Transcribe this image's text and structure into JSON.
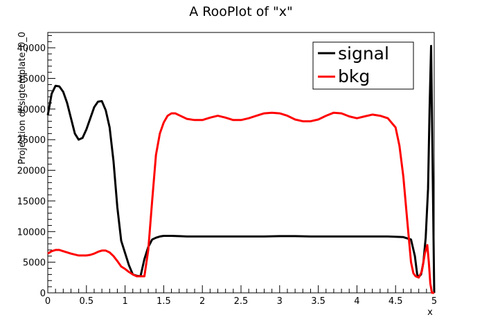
{
  "chart_data": {
    "type": "line",
    "title": "A RooPlot of \"x\"",
    "xlabel": "x",
    "ylabel": "Projection of sigtemplate_0_0",
    "xlim": [
      0,
      5
    ],
    "ylim": [
      0,
      42500
    ],
    "x_ticks": [
      0,
      0.5,
      1,
      1.5,
      2,
      2.5,
      3,
      3.5,
      4,
      4.5,
      5
    ],
    "x_tick_labels": [
      "0",
      "0.5",
      "1",
      "1.5",
      "2",
      "2.5",
      "3",
      "3.5",
      "4",
      "4.5",
      "5"
    ],
    "y_ticks": [
      0,
      5000,
      10000,
      15000,
      20000,
      25000,
      30000,
      35000,
      40000
    ],
    "y_tick_labels": [
      "0",
      "5000",
      "10000",
      "15000",
      "20000",
      "25000",
      "30000",
      "35000",
      "40000"
    ],
    "grid": false,
    "legend_position": "top-right",
    "series": [
      {
        "name": "signal",
        "color": "#000000",
        "x": [
          0,
          0.05,
          0.1,
          0.15,
          0.2,
          0.25,
          0.3,
          0.35,
          0.4,
          0.45,
          0.5,
          0.55,
          0.6,
          0.65,
          0.7,
          0.75,
          0.8,
          0.85,
          0.9,
          0.95,
          1.0,
          1.05,
          1.1,
          1.15,
          1.2,
          1.25,
          1.3,
          1.35,
          1.4,
          1.45,
          1.5,
          1.6,
          1.7,
          1.8,
          2.0,
          2.2,
          2.4,
          2.6,
          2.8,
          3.0,
          3.2,
          3.4,
          3.6,
          3.8,
          4.0,
          4.2,
          4.4,
          4.6,
          4.7,
          4.75,
          4.78,
          4.8,
          4.83,
          4.86,
          4.89,
          4.92,
          4.94,
          4.96,
          4.98,
          5.0
        ],
        "y": [
          29000,
          32500,
          33800,
          33700,
          32800,
          31000,
          28500,
          26000,
          25000,
          25300,
          26700,
          28500,
          30300,
          31200,
          31300,
          29800,
          27000,
          21500,
          14000,
          8500,
          6500,
          4500,
          3000,
          2800,
          2700,
          5500,
          7500,
          8700,
          9000,
          9200,
          9300,
          9300,
          9250,
          9200,
          9200,
          9200,
          9200,
          9200,
          9200,
          9250,
          9250,
          9200,
          9200,
          9200,
          9200,
          9200,
          9200,
          9100,
          8700,
          6000,
          3000,
          2600,
          3000,
          5000,
          9000,
          17000,
          30000,
          40300,
          20000,
          0
        ]
      },
      {
        "name": "bkg",
        "color": "#ff0000",
        "x": [
          0,
          0.05,
          0.1,
          0.15,
          0.2,
          0.3,
          0.4,
          0.5,
          0.55,
          0.6,
          0.65,
          0.7,
          0.75,
          0.8,
          0.85,
          0.9,
          0.95,
          1.0,
          1.05,
          1.1,
          1.15,
          1.2,
          1.25,
          1.3,
          1.35,
          1.4,
          1.45,
          1.5,
          1.55,
          1.6,
          1.65,
          1.7,
          1.8,
          1.9,
          2.0,
          2.1,
          2.2,
          2.3,
          2.4,
          2.5,
          2.6,
          2.7,
          2.8,
          2.9,
          3.0,
          3.1,
          3.2,
          3.3,
          3.4,
          3.5,
          3.6,
          3.7,
          3.8,
          3.9,
          4.0,
          4.1,
          4.2,
          4.3,
          4.4,
          4.5,
          4.55,
          4.6,
          4.65,
          4.7,
          4.73,
          4.76,
          4.8,
          4.84,
          4.88,
          4.91,
          4.93,
          4.95,
          4.97,
          5.0
        ],
        "y": [
          6400,
          6800,
          7000,
          7000,
          6800,
          6400,
          6100,
          6100,
          6200,
          6400,
          6700,
          6900,
          6900,
          6600,
          6000,
          5200,
          4300,
          3900,
          3400,
          3000,
          2700,
          2700,
          2700,
          7000,
          15000,
          22500,
          26000,
          27800,
          28900,
          29300,
          29300,
          29000,
          28400,
          28200,
          28200,
          28600,
          28900,
          28600,
          28200,
          28200,
          28500,
          28900,
          29300,
          29400,
          29300,
          28900,
          28300,
          28000,
          28000,
          28300,
          28900,
          29400,
          29300,
          28800,
          28500,
          28800,
          29100,
          28900,
          28500,
          27000,
          24000,
          19000,
          12000,
          5000,
          3200,
          2700,
          2500,
          3500,
          6500,
          7800,
          5000,
          1500,
          0,
          0
        ]
      }
    ]
  }
}
